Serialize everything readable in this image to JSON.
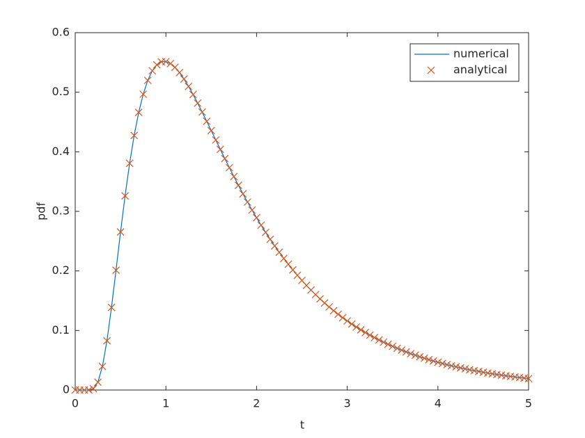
{
  "chart_data": {
    "type": "line",
    "xlabel": "t",
    "ylabel": "pdf",
    "x": [
      0,
      0.05,
      0.1,
      0.15,
      0.2,
      0.25,
      0.3,
      0.35,
      0.4,
      0.45,
      0.5,
      0.55,
      0.6,
      0.65,
      0.7,
      0.75,
      0.8,
      0.85,
      0.9,
      0.95,
      1,
      1.05,
      1.1,
      1.15,
      1.2,
      1.25,
      1.3,
      1.35,
      1.4,
      1.45,
      1.5,
      1.55,
      1.6,
      1.65,
      1.7,
      1.75,
      1.8,
      1.85,
      1.9,
      1.95,
      2,
      2.05,
      2.1,
      2.15,
      2.2,
      2.25,
      2.3,
      2.35,
      2.4,
      2.45,
      2.5,
      2.55,
      2.6,
      2.65,
      2.7,
      2.75,
      2.8,
      2.85,
      2.9,
      2.95,
      3,
      3.05,
      3.1,
      3.15,
      3.2,
      3.25,
      3.3,
      3.35,
      3.4,
      3.45,
      3.5,
      3.55,
      3.6,
      3.65,
      3.7,
      3.75,
      3.8,
      3.85,
      3.9,
      3.95,
      4,
      4.05,
      4.1,
      4.15,
      4.2,
      4.25,
      4.3,
      4.35,
      4.4,
      4.45,
      4.5,
      4.55,
      4.6,
      4.65,
      4.7,
      4.75,
      4.8,
      4.85,
      4.9,
      4.95,
      5
    ],
    "series": [
      {
        "name": "numerical",
        "color": "#0072bd",
        "mark": "line",
        "values": [
          0,
          0,
          0,
          0.0001,
          0.0023,
          0.0132,
          0.0396,
          0.0827,
          0.1387,
          0.2012,
          0.2654,
          0.3261,
          0.3806,
          0.4274,
          0.4661,
          0.4967,
          0.5199,
          0.5361,
          0.5461,
          0.5511,
          0.5514,
          0.5481,
          0.5418,
          0.533,
          0.5222,
          0.5098,
          0.4962,
          0.4817,
          0.4667,
          0.4512,
          0.4356,
          0.4198,
          0.4041,
          0.3886,
          0.3734,
          0.3584,
          0.3437,
          0.3294,
          0.3156,
          0.3022,
          0.2893,
          0.2768,
          0.2647,
          0.2531,
          0.242,
          0.2313,
          0.221,
          0.2112,
          0.2017,
          0.1927,
          0.184,
          0.1757,
          0.1678,
          0.1602,
          0.153,
          0.1461,
          0.1395,
          0.1332,
          0.1272,
          0.1215,
          0.116,
          0.1108,
          0.1058,
          0.1011,
          0.0965,
          0.0922,
          0.088,
          0.0841,
          0.0804,
          0.0768,
          0.0734,
          0.0701,
          0.067,
          0.064,
          0.0611,
          0.0584,
          0.0558,
          0.0534,
          0.051,
          0.0488,
          0.0466,
          0.0446,
          0.0426,
          0.0407,
          0.039,
          0.0373,
          0.0356,
          0.0341,
          0.0326,
          0.0312,
          0.0298,
          0.0285,
          0.0273,
          0.0261,
          0.025,
          0.0239,
          0.0229,
          0.0219,
          0.021,
          0.0201,
          0.0192
        ]
      },
      {
        "name": "analytical",
        "color": "#d95319",
        "mark": "x",
        "values": [
          0,
          0,
          0,
          0.0001,
          0.0023,
          0.0132,
          0.0396,
          0.0827,
          0.1387,
          0.2012,
          0.2654,
          0.3261,
          0.3806,
          0.4274,
          0.4661,
          0.4967,
          0.5199,
          0.5361,
          0.5461,
          0.5511,
          0.5514,
          0.5481,
          0.5418,
          0.533,
          0.5222,
          0.5098,
          0.4962,
          0.4817,
          0.4667,
          0.4512,
          0.4356,
          0.4198,
          0.4041,
          0.3886,
          0.3734,
          0.3584,
          0.3437,
          0.3294,
          0.3156,
          0.3022,
          0.2893,
          0.2768,
          0.2647,
          0.2531,
          0.242,
          0.2313,
          0.221,
          0.2112,
          0.2017,
          0.1927,
          0.184,
          0.1757,
          0.1678,
          0.1602,
          0.153,
          0.1461,
          0.1395,
          0.1332,
          0.1272,
          0.1215,
          0.116,
          0.1108,
          0.1058,
          0.1011,
          0.0965,
          0.0922,
          0.088,
          0.0841,
          0.0804,
          0.0768,
          0.0734,
          0.0701,
          0.067,
          0.064,
          0.0611,
          0.0584,
          0.0558,
          0.0534,
          0.051,
          0.0488,
          0.0466,
          0.0446,
          0.0426,
          0.0407,
          0.039,
          0.0373,
          0.0356,
          0.0341,
          0.0326,
          0.0312,
          0.0298,
          0.0285,
          0.0273,
          0.0261,
          0.025,
          0.0239,
          0.0229,
          0.0219,
          0.021,
          0.0201,
          0.0192
        ]
      }
    ],
    "xlim": [
      0,
      5
    ],
    "xticks": [
      0,
      1,
      2,
      3,
      4,
      5
    ],
    "ylim": [
      0,
      0.6
    ],
    "yticks": [
      0,
      0.1,
      0.2,
      0.3,
      0.4,
      0.5,
      0.6
    ],
    "legend": "northeast"
  }
}
